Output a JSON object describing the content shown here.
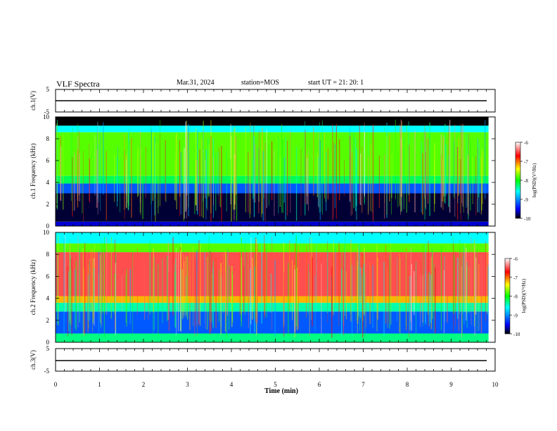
{
  "header": {
    "title": "VLF Spectra",
    "date": "Mar.31, 2024",
    "station": "station=MOS",
    "start": "start  UT  =   21: 20: 1"
  },
  "colors": {
    "background": "#ffffff",
    "axis": "#000000",
    "colormap": [
      "#000000",
      "#0000ff",
      "#00ffff",
      "#00ff00",
      "#ffff00",
      "#ff0000",
      "#ffffff"
    ]
  },
  "chart_data": [
    {
      "type": "line",
      "name": "ch1-voltage",
      "ylabel": "ch.1(V)",
      "xlim": [
        0,
        10
      ],
      "ylim": [
        -5,
        5
      ],
      "yticks": [
        "5",
        "-5"
      ],
      "level": -0.1
    },
    {
      "type": "heatmap",
      "name": "ch1-spectrogram",
      "ylabel": "ch.1  Frequency  (kHz)",
      "xlim": [
        0,
        10
      ],
      "ylim": [
        0,
        10
      ],
      "yticks": [
        "0",
        "2",
        "4",
        "6",
        "8",
        "10"
      ],
      "data_end_min": 9.85,
      "colorbar": {
        "label": "log(PSD)(V²/Hz)",
        "range": [
          -10,
          -6
        ],
        "ticks": [
          "-6",
          "-7",
          "-8",
          "-9",
          "-10"
        ]
      },
      "bands": [
        {
          "from_khz": 0.0,
          "to_khz": 0.4,
          "logpsd": -9.6
        },
        {
          "from_khz": 0.4,
          "to_khz": 3.0,
          "logpsd": -9.9
        },
        {
          "from_khz": 3.0,
          "to_khz": 3.9,
          "logpsd": -9.2
        },
        {
          "from_khz": 3.9,
          "to_khz": 4.6,
          "logpsd": -8.2
        },
        {
          "from_khz": 4.6,
          "to_khz": 8.6,
          "logpsd": -7.8
        },
        {
          "from_khz": 8.6,
          "to_khz": 9.2,
          "logpsd": -8.6
        },
        {
          "from_khz": 9.2,
          "to_khz": 10.0,
          "logpsd": -10.0
        }
      ]
    },
    {
      "type": "heatmap",
      "name": "ch2-spectrogram",
      "ylabel": "ch.2  Frequency  (kHz)",
      "xlim": [
        0,
        10
      ],
      "ylim": [
        0,
        10
      ],
      "yticks": [
        "0",
        "2",
        "4",
        "6",
        "8",
        "10"
      ],
      "data_end_min": 9.85,
      "colorbar": {
        "label": "log(PSD)(V²/Hz)",
        "range": [
          -10,
          -6
        ],
        "ticks": [
          "-6",
          "-7",
          "-8",
          "-9",
          "-10"
        ]
      },
      "bands": [
        {
          "from_khz": 0.0,
          "to_khz": 0.8,
          "logpsd": -8.3
        },
        {
          "from_khz": 0.8,
          "to_khz": 2.8,
          "logpsd": -9.2
        },
        {
          "from_khz": 2.8,
          "to_khz": 3.6,
          "logpsd": -8.4
        },
        {
          "from_khz": 3.6,
          "to_khz": 4.2,
          "logpsd": -7.2
        },
        {
          "from_khz": 4.2,
          "to_khz": 8.2,
          "logpsd": -6.5
        },
        {
          "from_khz": 8.2,
          "to_khz": 9.0,
          "logpsd": -7.8
        },
        {
          "from_khz": 9.0,
          "to_khz": 10.0,
          "logpsd": -8.6
        }
      ]
    },
    {
      "type": "line",
      "name": "ch3-voltage",
      "ylabel": "ch.3(V)",
      "xlim": [
        0,
        10
      ],
      "ylim": [
        -5,
        5
      ],
      "yticks": [
        "5",
        "-5"
      ],
      "level": -0.1
    }
  ],
  "xaxis": {
    "label": "Time  (min)",
    "ticks": [
      "0",
      "1",
      "2",
      "3",
      "4",
      "5",
      "6",
      "7",
      "8",
      "9",
      "10"
    ]
  }
}
